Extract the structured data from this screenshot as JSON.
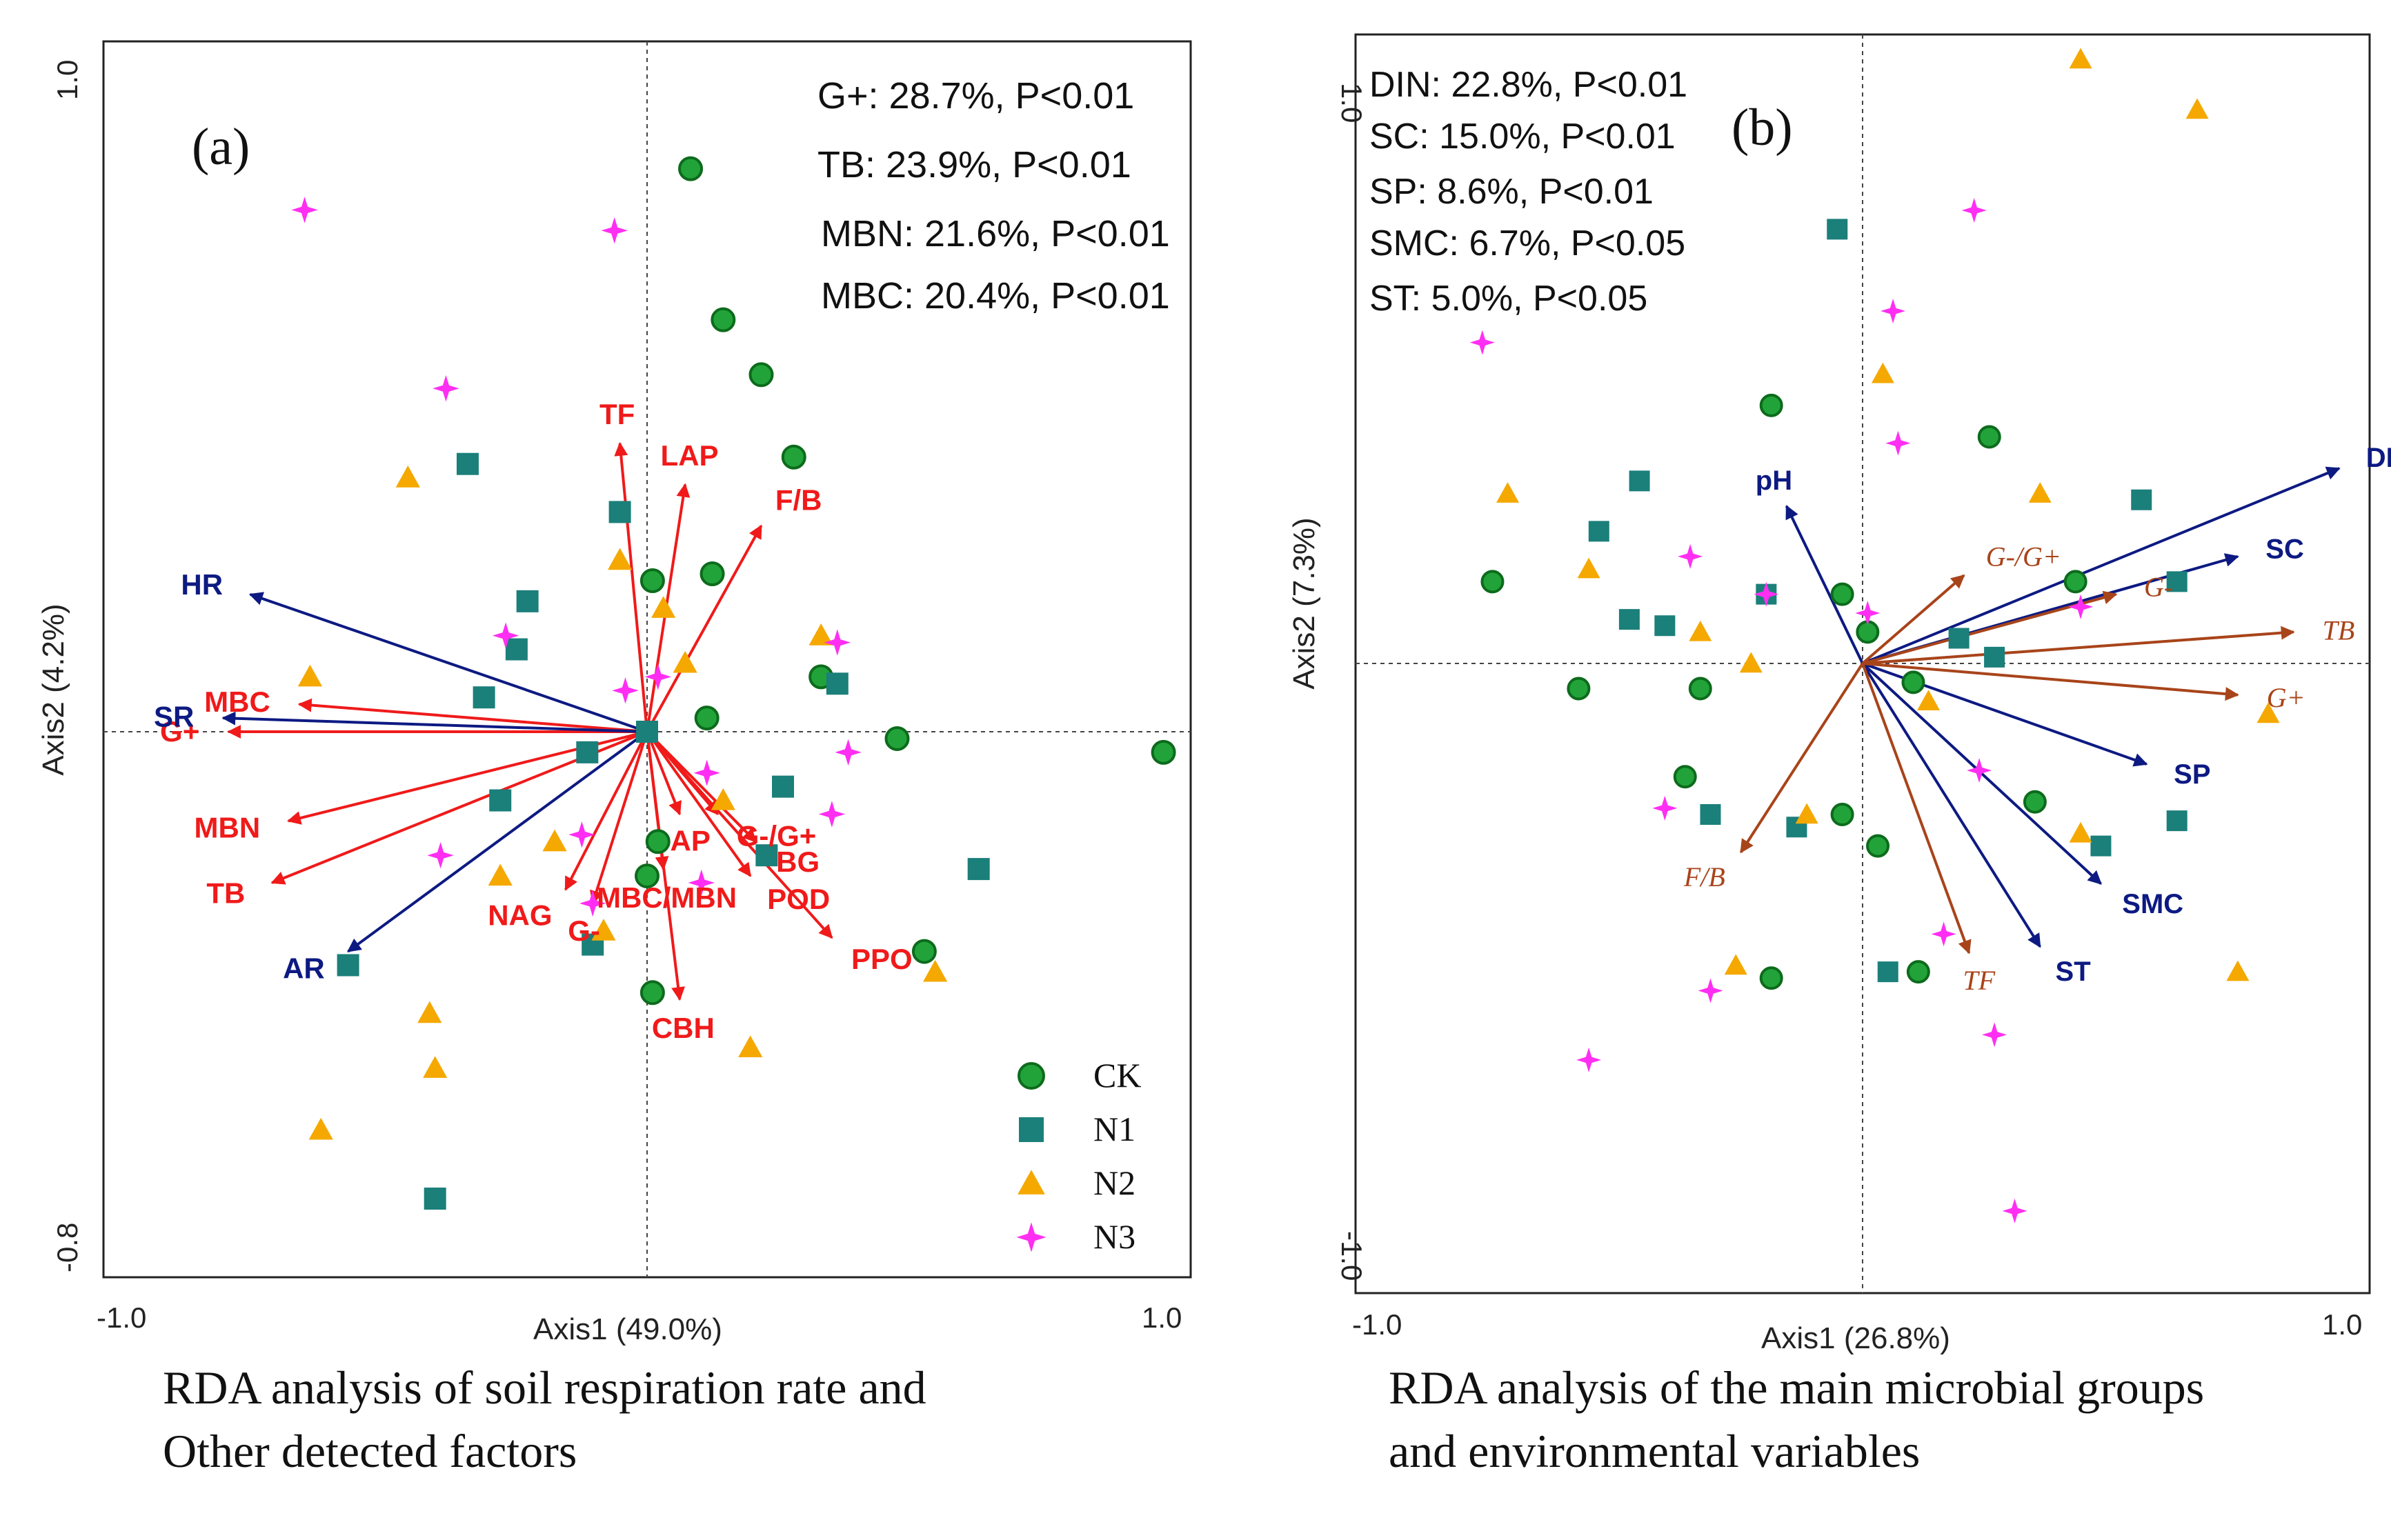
{
  "colors": {
    "ck": "#21a33a",
    "ck_outline": "#0d6b1c",
    "n1": "#1b7f7a",
    "n2": "#f5a800",
    "n3": "#ff2ef2",
    "red_arrow": "#f01a1a",
    "blue_arrow": "#0d1a82",
    "brown_arrow": "#a8441a"
  },
  "chart_data": [
    {
      "type": "scatter",
      "panel_label": "(a)",
      "xlabel": "Axis1 (49.0%)",
      "ylabel": "Axis2 (4.2%)",
      "xlim": [
        -1.0,
        1.0
      ],
      "ylim": [
        -0.8,
        1.0
      ],
      "x_ticks": [
        "-1.0",
        "1.0"
      ],
      "y_ticks": [
        "-0.8",
        "1.0"
      ],
      "annotations": [
        "G+: 28.7%, P<0.01",
        "TB: 23.9%, P<0.01",
        "MBN: 21.6%, P<0.01",
        "MBC: 20.4%, P<0.01"
      ],
      "legend": [
        {
          "name": "CK",
          "marker": "circle"
        },
        {
          "name": "N1",
          "marker": "square"
        },
        {
          "name": "N2",
          "marker": "triangle"
        },
        {
          "name": "N3",
          "marker": "star"
        }
      ],
      "red_vectors": [
        {
          "label": "TF",
          "x": -0.05,
          "y": 0.42
        },
        {
          "label": "LAP",
          "x": 0.07,
          "y": 0.36
        },
        {
          "label": "F/B",
          "x": 0.21,
          "y": 0.3
        },
        {
          "label": "MBC",
          "x": -0.64,
          "y": 0.04
        },
        {
          "label": "G+",
          "x": -0.77,
          "y": 0.0
        },
        {
          "label": "MBN",
          "x": -0.66,
          "y": -0.13
        },
        {
          "label": "TB",
          "x": -0.69,
          "y": -0.22
        },
        {
          "label": "NAG",
          "x": -0.15,
          "y": -0.23
        },
        {
          "label": "G-",
          "x": -0.1,
          "y": -0.25
        },
        {
          "label": "MBC/MBN",
          "x": 0.03,
          "y": -0.2
        },
        {
          "label": "AP",
          "x": 0.06,
          "y": -0.12
        },
        {
          "label": "G-/G+",
          "x": 0.13,
          "y": -0.12
        },
        {
          "label": "BG",
          "x": 0.2,
          "y": -0.16
        },
        {
          "label": "POD",
          "x": 0.19,
          "y": -0.21
        },
        {
          "label": "PPO",
          "x": 0.34,
          "y": -0.3
        },
        {
          "label": "CBH",
          "x": 0.06,
          "y": -0.39
        }
      ],
      "blue_vectors": [
        {
          "label": "HR",
          "x": -0.73,
          "y": 0.2
        },
        {
          "label": "SR",
          "x": -0.78,
          "y": 0.02
        },
        {
          "label": "AR",
          "x": -0.55,
          "y": -0.32
        }
      ],
      "series": [
        {
          "name": "CK",
          "points": [
            [
              0.08,
              0.82
            ],
            [
              0.14,
              0.6
            ],
            [
              0.21,
              0.52
            ],
            [
              0.27,
              0.4
            ],
            [
              0.01,
              0.22
            ],
            [
              0.12,
              0.23
            ],
            [
              0.32,
              0.08
            ],
            [
              0.11,
              0.02
            ],
            [
              0.46,
              -0.01
            ],
            [
              0.95,
              -0.03
            ],
            [
              0.02,
              -0.16
            ],
            [
              0.0,
              -0.21
            ],
            [
              0.51,
              -0.32
            ],
            [
              0.01,
              -0.38
            ]
          ]
        },
        {
          "name": "N1",
          "points": [
            [
              -0.33,
              0.39
            ],
            [
              -0.05,
              0.32
            ],
            [
              -0.22,
              0.19
            ],
            [
              -0.24,
              0.12
            ],
            [
              -0.3,
              0.05
            ],
            [
              -0.11,
              -0.03
            ],
            [
              -0.27,
              -0.1
            ],
            [
              0.0,
              0.0
            ],
            [
              0.25,
              -0.08
            ],
            [
              0.22,
              -0.18
            ],
            [
              0.35,
              0.07
            ],
            [
              -0.1,
              -0.31
            ],
            [
              0.61,
              -0.2
            ],
            [
              -0.55,
              -0.34
            ],
            [
              -0.39,
              -0.68
            ]
          ]
        },
        {
          "name": "N2",
          "points": [
            [
              -0.44,
              0.37
            ],
            [
              -0.05,
              0.25
            ],
            [
              0.03,
              0.18
            ],
            [
              0.07,
              0.1
            ],
            [
              0.32,
              0.14
            ],
            [
              -0.62,
              0.08
            ],
            [
              0.14,
              -0.1
            ],
            [
              -0.17,
              -0.16
            ],
            [
              -0.27,
              -0.21
            ],
            [
              -0.08,
              -0.29
            ],
            [
              -0.4,
              -0.41
            ],
            [
              -0.39,
              -0.49
            ],
            [
              0.19,
              -0.46
            ],
            [
              0.53,
              -0.35
            ],
            [
              -0.6,
              -0.58
            ]
          ]
        },
        {
          "name": "N3",
          "points": [
            [
              -0.63,
              0.76
            ],
            [
              -0.06,
              0.73
            ],
            [
              -0.37,
              0.5
            ],
            [
              -0.26,
              0.14
            ],
            [
              0.35,
              0.13
            ],
            [
              -0.04,
              0.06
            ],
            [
              0.02,
              0.08
            ],
            [
              0.37,
              -0.03
            ],
            [
              0.34,
              -0.12
            ],
            [
              0.11,
              -0.06
            ],
            [
              -0.38,
              -0.18
            ],
            [
              -0.12,
              -0.15
            ],
            [
              0.1,
              -0.22
            ],
            [
              -0.1,
              -0.25
            ]
          ]
        }
      ]
    },
    {
      "type": "scatter",
      "panel_label": "(b)",
      "xlabel": "Axis1 (26.8%)",
      "ylabel": "Axis2 (7.3%)",
      "xlim": [
        -1.0,
        1.0
      ],
      "ylim": [
        -1.0,
        1.0
      ],
      "x_ticks": [
        "-1.0",
        "1.0"
      ],
      "y_ticks": [
        "-1.0",
        "1.0"
      ],
      "annotations": [
        "DIN: 22.8%, P<0.01",
        "SC: 15.0%, P<0.01",
        "SP: 8.6%, P<0.01",
        "SMC: 6.7%, P<0.05",
        "ST: 5.0%, P<0.05"
      ],
      "blue_vectors": [
        {
          "label": "DIN",
          "x": 0.94,
          "y": 0.31
        },
        {
          "label": "SC",
          "x": 0.74,
          "y": 0.17
        },
        {
          "label": "SP",
          "x": 0.56,
          "y": -0.16
        },
        {
          "label": "SMC",
          "x": 0.47,
          "y": -0.35
        },
        {
          "label": "ST",
          "x": 0.35,
          "y": -0.45
        },
        {
          "label": "pH",
          "x": -0.15,
          "y": 0.25
        }
      ],
      "brown_vectors": [
        {
          "label": "TB",
          "x": 0.85,
          "y": 0.05
        },
        {
          "label": "G+",
          "x": 0.74,
          "y": -0.05
        },
        {
          "label": "G-",
          "x": 0.5,
          "y": 0.11
        },
        {
          "label": "G-/G+",
          "x": 0.2,
          "y": 0.14
        },
        {
          "label": "F/B",
          "x": -0.24,
          "y": -0.3
        },
        {
          "label": "TF",
          "x": 0.21,
          "y": -0.46
        }
      ],
      "series": [
        {
          "name": "CK",
          "points": [
            [
              -0.73,
              0.13
            ],
            [
              -0.56,
              -0.04
            ],
            [
              -0.32,
              -0.04
            ],
            [
              -0.18,
              0.41
            ],
            [
              0.25,
              0.36
            ],
            [
              0.42,
              0.13
            ],
            [
              -0.04,
              0.11
            ],
            [
              0.01,
              0.05
            ],
            [
              0.1,
              -0.03
            ],
            [
              -0.35,
              -0.18
            ],
            [
              -0.04,
              -0.24
            ],
            [
              0.03,
              -0.29
            ],
            [
              0.34,
              -0.22
            ],
            [
              -0.18,
              -0.5
            ],
            [
              0.11,
              -0.49
            ]
          ]
        },
        {
          "name": "N1",
          "points": [
            [
              -0.05,
              0.69
            ],
            [
              -0.44,
              0.29
            ],
            [
              -0.52,
              0.21
            ],
            [
              -0.46,
              0.07
            ],
            [
              -0.39,
              0.06
            ],
            [
              -0.19,
              0.11
            ],
            [
              0.19,
              0.04
            ],
            [
              0.26,
              0.01
            ],
            [
              0.55,
              0.26
            ],
            [
              0.62,
              0.13
            ],
            [
              -0.3,
              -0.24
            ],
            [
              -0.13,
              -0.26
            ],
            [
              0.47,
              -0.29
            ],
            [
              0.62,
              -0.25
            ],
            [
              0.05,
              -0.49
            ]
          ]
        },
        {
          "name": "N2",
          "points": [
            [
              0.43,
              0.96
            ],
            [
              0.66,
              0.88
            ],
            [
              0.04,
              0.46
            ],
            [
              -0.7,
              0.27
            ],
            [
              -0.54,
              0.15
            ],
            [
              0.35,
              0.27
            ],
            [
              -0.32,
              0.05
            ],
            [
              -0.22,
              0.0
            ],
            [
              0.13,
              -0.06
            ],
            [
              0.8,
              -0.08
            ],
            [
              -0.11,
              -0.24
            ],
            [
              0.43,
              -0.27
            ],
            [
              -0.25,
              -0.48
            ],
            [
              0.74,
              -0.49
            ]
          ]
        },
        {
          "name": "N3",
          "points": [
            [
              -0.75,
              0.51
            ],
            [
              0.22,
              0.72
            ],
            [
              0.06,
              0.56
            ],
            [
              0.07,
              0.35
            ],
            [
              -0.34,
              0.17
            ],
            [
              -0.19,
              0.11
            ],
            [
              0.01,
              0.08
            ],
            [
              0.43,
              0.09
            ],
            [
              0.23,
              -0.17
            ],
            [
              -0.39,
              -0.23
            ],
            [
              -0.3,
              -0.52
            ],
            [
              0.16,
              -0.43
            ],
            [
              0.26,
              -0.59
            ],
            [
              -0.54,
              -0.63
            ],
            [
              0.3,
              -0.87
            ]
          ]
        }
      ]
    }
  ],
  "captions": {
    "a": [
      "RDA analysis of soil respiration rate and",
      "Other detected factors"
    ],
    "b": [
      "RDA analysis of the main microbial groups",
      "and environmental variables"
    ]
  }
}
